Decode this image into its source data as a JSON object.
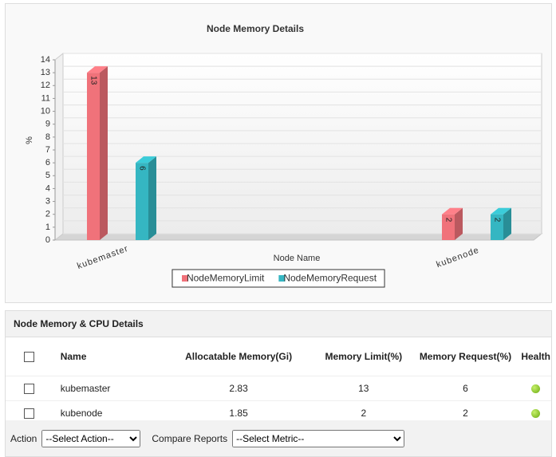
{
  "chart_data": {
    "type": "bar3d",
    "title": "Node Memory Details",
    "x_label": "Node Name",
    "y_label": "%",
    "categories": [
      "kubemaster",
      "kubenode"
    ],
    "series": [
      {
        "name": "NodeMemoryLimit",
        "color": "#f0727a",
        "values": [
          13,
          2
        ]
      },
      {
        "name": "NodeMemoryRequest",
        "color": "#35b6c2",
        "values": [
          6,
          2
        ]
      }
    ],
    "ylim": [
      0,
      14
    ],
    "yticks": [
      0,
      1,
      2,
      3,
      4,
      5,
      6,
      7,
      8,
      9,
      10,
      11,
      12,
      13,
      14
    ],
    "grid": true,
    "legend": "bottom",
    "data_labels": true
  },
  "table": {
    "title": "Node Memory & CPU Details",
    "columns": [
      "Name",
      "Allocatable Memory(Gi)",
      "Memory Limit(%)",
      "Memory Request(%)",
      "Health"
    ],
    "rows": [
      [
        "kubemaster",
        "2.83",
        "13",
        "6"
      ],
      [
        "kubenode",
        "1.85",
        "2",
        "2"
      ]
    ]
  },
  "footer": {
    "action_label": "Action",
    "action_select": "--Select Action--",
    "compare_label": "Compare Reports",
    "compare_select": "--Select Metric--"
  }
}
